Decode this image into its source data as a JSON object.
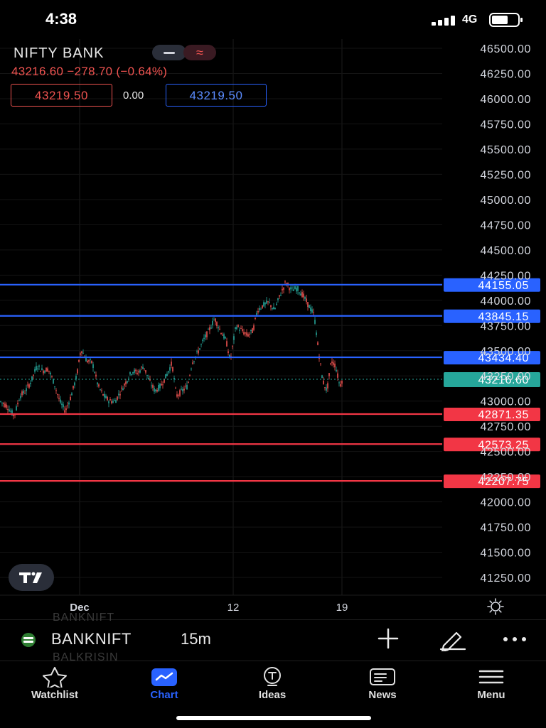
{
  "status": {
    "time": "4:38",
    "network": "4G"
  },
  "header": {
    "symbol_title": "NIFTY BANK",
    "quote": "43216.60  −278.70 (−0.64%)",
    "chip_wave_glyph": "≈",
    "sell_price": "43219.50",
    "spread": "0.00",
    "buy_price": "43219.50"
  },
  "colors": {
    "blue_line": "#2962ff",
    "red_line": "#f23645",
    "last_price": "#26a69a",
    "up": "#26a69a",
    "down": "#ef5350",
    "axis_text": "#d1d4dc"
  },
  "chart_data": {
    "type": "candlestick",
    "title": "",
    "interval": "15m",
    "ylim": [
      41100,
      46650
    ],
    "y_ticks": [
      "46500.00",
      "46250.00",
      "46000.00",
      "45750.00",
      "45500.00",
      "45250.00",
      "45000.00",
      "44750.00",
      "44500.00",
      "44250.00",
      "44000.00",
      "43750.00",
      "43500.00",
      "43250.00",
      "43000.00",
      "42750.00",
      "42500.00",
      "42250.00",
      "42000.00",
      "41750.00",
      "41500.00",
      "41250.00"
    ],
    "x_ticks": [
      "Dec",
      "12",
      "19"
    ],
    "last_price": {
      "value": 43216.6,
      "label": "43216.60"
    },
    "horizontal_lines": [
      {
        "value": 44155.05,
        "label": "44155.05",
        "color": "blue"
      },
      {
        "value": 43845.15,
        "label": "43845.15",
        "color": "blue"
      },
      {
        "value": 43434.4,
        "label": "43434.40",
        "color": "blue"
      },
      {
        "value": 42871.35,
        "label": "42871.35",
        "color": "red"
      },
      {
        "value": 42573.25,
        "label": "42573.25",
        "color": "red"
      },
      {
        "value": 42207.75,
        "label": "42207.75",
        "color": "red"
      }
    ],
    "price_path": [
      [
        0,
        43000
      ],
      [
        10,
        42950
      ],
      [
        20,
        42850
      ],
      [
        28,
        43050
      ],
      [
        36,
        43100
      ],
      [
        44,
        43200
      ],
      [
        52,
        43350
      ],
      [
        60,
        43300
      ],
      [
        68,
        43320
      ],
      [
        76,
        43180
      ],
      [
        84,
        43000
      ],
      [
        92,
        42900
      ],
      [
        100,
        43050
      ],
      [
        108,
        43250
      ],
      [
        114,
        43520
      ],
      [
        122,
        43400
      ],
      [
        130,
        43380
      ],
      [
        138,
        43150
      ],
      [
        146,
        43050
      ],
      [
        154,
        43000
      ],
      [
        162,
        43000
      ],
      [
        170,
        43100
      ],
      [
        178,
        43200
      ],
      [
        186,
        43300
      ],
      [
        194,
        43280
      ],
      [
        202,
        43350
      ],
      [
        210,
        43200
      ],
      [
        218,
        43100
      ],
      [
        226,
        43150
      ],
      [
        234,
        43250
      ],
      [
        242,
        43380
      ],
      [
        248,
        43050
      ],
      [
        256,
        43100
      ],
      [
        264,
        43150
      ],
      [
        270,
        43380
      ],
      [
        278,
        43480
      ],
      [
        286,
        43600
      ],
      [
        294,
        43700
      ],
      [
        302,
        43820
      ],
      [
        310,
        43700
      ],
      [
        318,
        43600
      ],
      [
        324,
        43400
      ],
      [
        332,
        43750
      ],
      [
        340,
        43700
      ],
      [
        348,
        43650
      ],
      [
        356,
        43700
      ],
      [
        362,
        43900
      ],
      [
        370,
        43950
      ],
      [
        378,
        43980
      ],
      [
        386,
        43900
      ],
      [
        394,
        44050
      ],
      [
        402,
        44180
      ],
      [
        410,
        44100
      ],
      [
        418,
        44120
      ],
      [
        426,
        44050
      ],
      [
        434,
        43950
      ],
      [
        442,
        43850
      ],
      [
        448,
        43500
      ],
      [
        454,
        43200
      ],
      [
        460,
        43100
      ],
      [
        466,
        43400
      ],
      [
        472,
        43350
      ],
      [
        478,
        43150
      ],
      [
        482,
        43220
      ]
    ]
  },
  "symbol_bar": {
    "ghost_top": "BANKNIFT",
    "name": "BANKNIFT",
    "ghost_bottom": "BALKRISIN",
    "interval": "15m"
  },
  "tabs": [
    {
      "label": "Watchlist"
    },
    {
      "label": "Chart"
    },
    {
      "label": "Ideas"
    },
    {
      "label": "News"
    },
    {
      "label": "Menu"
    }
  ]
}
